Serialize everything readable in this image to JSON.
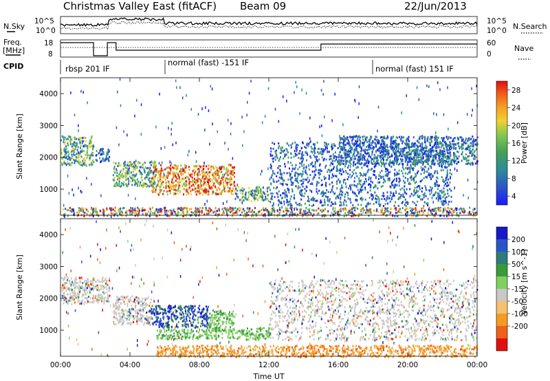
{
  "header": {
    "station": "Christmas Valley East (fitACF)",
    "beam": "Beam 09",
    "date": "22/Jun/2013"
  },
  "top_panels": {
    "nsky_label": "N.Sky",
    "nsky_ticks": [
      "10^5",
      "10^0"
    ],
    "nsearch_label": "N.Search",
    "nsearch_ticks": [
      "10^5",
      "10^0"
    ],
    "freq_label_1": "Freq.",
    "freq_label_2": "[MHz]",
    "freq_ticks": [
      "18",
      "8"
    ],
    "nave_label": "Nave",
    "nave_ticks": [
      "60",
      "0"
    ],
    "cpid_label": "CPID",
    "cpid_segments": [
      {
        "label": "rbsp 201 IF",
        "start_hour": 0
      },
      {
        "label": "normal (fast) -151 IF",
        "start_hour": 6
      },
      {
        "label": "normal (fast) 151 IF",
        "start_hour": 18
      }
    ]
  },
  "chart_data": [
    {
      "type": "heatmap",
      "name": "power",
      "ylabel": "Slant Range [km]",
      "ylim": [
        180,
        4500
      ],
      "yticks": [
        1000,
        2000,
        3000,
        4000
      ],
      "xlim": [
        0,
        24
      ],
      "xlabel": "",
      "colorbar": {
        "label": "Power [dB]",
        "ticks": [
          "4",
          "8",
          "12",
          "16",
          "20",
          "24",
          "28"
        ],
        "colors": [
          "#1a1aff",
          "#2a55c8",
          "#2d8a9a",
          "#3fa05a",
          "#7ec850",
          "#f0d030",
          "#f59a22",
          "#f05a18",
          "#e01010"
        ]
      },
      "features": [
        {
          "t0": 0.0,
          "t1": 1.9,
          "r0": 1750,
          "r1": 2700,
          "level": "medium"
        },
        {
          "t0": 2.0,
          "t1": 2.8,
          "r0": 1850,
          "r1": 2300,
          "level": "low"
        },
        {
          "t0": 3.0,
          "t1": 5.5,
          "r0": 1100,
          "r1": 1900,
          "level": "medium"
        },
        {
          "t0": 5.2,
          "t1": 10.0,
          "r0": 850,
          "r1": 1800,
          "level": "high"
        },
        {
          "t0": 10.0,
          "t1": 12.0,
          "r0": 650,
          "r1": 1100,
          "level": "medium"
        },
        {
          "t0": 12.0,
          "t1": 22.5,
          "r0": 500,
          "r1": 2500,
          "level": "low"
        },
        {
          "t0": 16.0,
          "t1": 24.0,
          "r0": 1800,
          "r1": 2700,
          "level": "low"
        },
        {
          "t0": 0.0,
          "t1": 24.0,
          "r0": 180,
          "r1": 450,
          "level": "ground"
        }
      ]
    },
    {
      "type": "heatmap",
      "name": "velocity",
      "ylabel": "Slant Range [km]",
      "ylim": [
        180,
        4500
      ],
      "yticks": [
        1000,
        2000,
        3000,
        4000
      ],
      "xlim": [
        0,
        24
      ],
      "xlabel": "Time UT",
      "xticks": [
        "00:00",
        "04:00",
        "08:00",
        "12:00",
        "16:00",
        "20:00",
        "00:00"
      ],
      "colorbar": {
        "label": "Velocity [m s^-1]",
        "ticks": [
          "200",
          "100",
          "50",
          "15",
          "-15",
          "-50",
          "-100",
          "-200"
        ],
        "colors": [
          "#1818c8",
          "#2a55c8",
          "#2f7a7a",
          "#3a9a3a",
          "#80d060",
          "#c8c8c8",
          "#f5c070",
          "#f59a22",
          "#f06018",
          "#e01010"
        ]
      },
      "features": [
        {
          "t0": 0.0,
          "t1": 2.8,
          "r0": 1850,
          "r1": 2700,
          "level": "grey"
        },
        {
          "t0": 3.0,
          "t1": 5.2,
          "r0": 1200,
          "r1": 2100,
          "level": "grey"
        },
        {
          "t0": 5.2,
          "t1": 8.5,
          "r0": 1100,
          "r1": 1800,
          "level": "blue"
        },
        {
          "t0": 8.5,
          "t1": 10.0,
          "r0": 1000,
          "r1": 1650,
          "level": "green"
        },
        {
          "t0": 5.5,
          "t1": 10.5,
          "r0": 750,
          "r1": 1050,
          "level": "green"
        },
        {
          "t0": 10.5,
          "t1": 12.0,
          "r0": 700,
          "r1": 1100,
          "level": "green"
        },
        {
          "t0": 12.0,
          "t1": 24.0,
          "r0": 700,
          "r1": 2600,
          "level": "grey"
        },
        {
          "t0": 5.5,
          "t1": 24.0,
          "r0": 180,
          "r1": 550,
          "level": "orange"
        }
      ]
    }
  ]
}
